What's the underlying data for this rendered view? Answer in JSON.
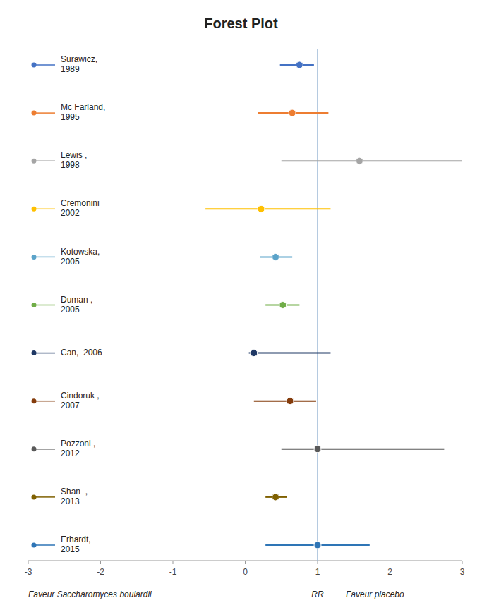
{
  "chart_data": {
    "type": "forest",
    "title": "Forest Plot",
    "xlabel": "RR",
    "xlabel_left": "Faveur Saccharomyces boulardii",
    "xlabel_right": "Faveur placebo",
    "categories": [
      "Surawicz,\n1989",
      "Mc Farland,\n1995",
      "Lewis ,\n1998",
      "Cremonini\n2002",
      "Kotowska,\n2005",
      "Duman ,\n2005",
      "Can,  2006",
      "Cindoruk ,\n2007",
      "Pozzoni ,\n2012",
      "Shan  ,\n2013",
      "Erhardt,\n2015"
    ],
    "values": [
      0.75,
      0.65,
      1.58,
      0.22,
      0.42,
      0.52,
      0.12,
      0.62,
      1.0,
      0.42,
      1.0
    ],
    "ci_low": [
      0.48,
      0.18,
      0.5,
      -0.55,
      0.2,
      0.28,
      0.05,
      0.12,
      0.5,
      0.28,
      0.28
    ],
    "ci_high": [
      0.95,
      1.15,
      3.0,
      1.18,
      0.65,
      0.75,
      1.18,
      0.98,
      2.75,
      0.58,
      1.72
    ],
    "colors": [
      "#4472C4",
      "#ED7D31",
      "#A5A5A5",
      "#FFC000",
      "#5BA3C9",
      "#70AD47",
      "#1F3864",
      "#843C0C",
      "#595959",
      "#7F6000",
      "#2E75B6"
    ],
    "reference_line": 1.0,
    "xlim": [
      -3,
      3
    ],
    "xticks": [
      -3,
      -2,
      -1,
      0,
      1,
      2,
      3
    ]
  }
}
